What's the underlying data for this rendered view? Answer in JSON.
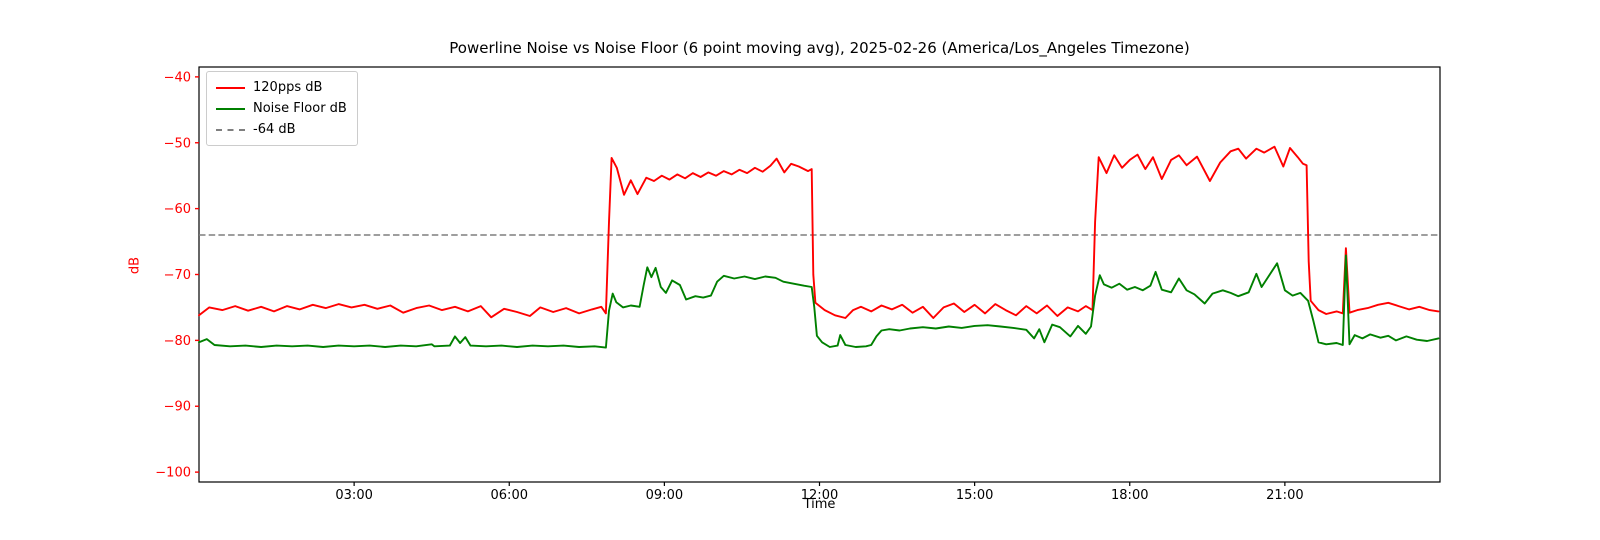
{
  "chart_data": {
    "type": "line",
    "title": "Powerline Noise vs Noise Floor (6 point moving avg), 2025-02-26 (America/Los_Angeles Timezone)",
    "xlabel": "Time",
    "ylabel": "dB",
    "xlim": [
      0,
      24
    ],
    "ylim": [
      -101.5,
      -38.5
    ],
    "grid": false,
    "legend_position": "upper-left",
    "axis_colors": {
      "y_tick_color": "#ff0000",
      "x_tick_color": "#000000",
      "frame_color": "#000000"
    },
    "x_ticks": [
      {
        "t": 3,
        "label": "03:00"
      },
      {
        "t": 6,
        "label": "06:00"
      },
      {
        "t": 9,
        "label": "09:00"
      },
      {
        "t": 12,
        "label": "12:00"
      },
      {
        "t": 15,
        "label": "15:00"
      },
      {
        "t": 18,
        "label": "18:00"
      },
      {
        "t": 21,
        "label": "21:00"
      }
    ],
    "y_ticks": [
      {
        "v": -40,
        "label": "−40"
      },
      {
        "v": -50,
        "label": "−50"
      },
      {
        "v": -60,
        "label": "−60"
      },
      {
        "v": -70,
        "label": "−70"
      },
      {
        "v": -80,
        "label": "−80"
      },
      {
        "v": -90,
        "label": "−90"
      },
      {
        "v": -100,
        "label": "−100"
      }
    ],
    "threshold": {
      "value": -64,
      "label": "-64 dB",
      "color": "#7f7f7f",
      "style": "dashed"
    },
    "legend": [
      {
        "label": "120pps dB",
        "color": "#ff0000",
        "dash": false
      },
      {
        "label": "Noise Floor dB",
        "color": "#008000",
        "dash": false
      },
      {
        "label": "-64 dB",
        "color": "#7f7f7f",
        "dash": true
      }
    ],
    "series": [
      {
        "name": "120pps dB",
        "color": "#ff0000",
        "points": [
          [
            0.0,
            -76.2
          ],
          [
            0.2,
            -75.0
          ],
          [
            0.45,
            -75.4
          ],
          [
            0.7,
            -74.8
          ],
          [
            0.95,
            -75.5
          ],
          [
            1.2,
            -74.9
          ],
          [
            1.45,
            -75.6
          ],
          [
            1.7,
            -74.8
          ],
          [
            1.95,
            -75.3
          ],
          [
            2.2,
            -74.6
          ],
          [
            2.45,
            -75.1
          ],
          [
            2.7,
            -74.5
          ],
          [
            2.95,
            -75.0
          ],
          [
            3.2,
            -74.6
          ],
          [
            3.45,
            -75.2
          ],
          [
            3.7,
            -74.7
          ],
          [
            3.95,
            -75.8
          ],
          [
            4.2,
            -75.1
          ],
          [
            4.45,
            -74.7
          ],
          [
            4.7,
            -75.4
          ],
          [
            4.95,
            -74.9
          ],
          [
            5.2,
            -75.6
          ],
          [
            5.45,
            -74.8
          ],
          [
            5.65,
            -76.5
          ],
          [
            5.9,
            -75.2
          ],
          [
            6.15,
            -75.7
          ],
          [
            6.4,
            -76.3
          ],
          [
            6.6,
            -75.0
          ],
          [
            6.85,
            -75.7
          ],
          [
            7.1,
            -75.1
          ],
          [
            7.35,
            -75.9
          ],
          [
            7.6,
            -75.3
          ],
          [
            7.78,
            -74.9
          ],
          [
            7.87,
            -75.9
          ],
          [
            7.93,
            -62.0
          ],
          [
            7.98,
            -52.3
          ],
          [
            8.08,
            -53.8
          ],
          [
            8.22,
            -57.9
          ],
          [
            8.35,
            -55.7
          ],
          [
            8.48,
            -57.8
          ],
          [
            8.65,
            -55.3
          ],
          [
            8.8,
            -55.8
          ],
          [
            8.95,
            -55.0
          ],
          [
            9.1,
            -55.6
          ],
          [
            9.25,
            -54.8
          ],
          [
            9.4,
            -55.4
          ],
          [
            9.55,
            -54.6
          ],
          [
            9.7,
            -55.2
          ],
          [
            9.85,
            -54.5
          ],
          [
            10.0,
            -55.0
          ],
          [
            10.15,
            -54.3
          ],
          [
            10.3,
            -54.8
          ],
          [
            10.45,
            -54.1
          ],
          [
            10.6,
            -54.6
          ],
          [
            10.75,
            -53.8
          ],
          [
            10.9,
            -54.4
          ],
          [
            11.05,
            -53.5
          ],
          [
            11.17,
            -52.4
          ],
          [
            11.32,
            -54.5
          ],
          [
            11.45,
            -53.2
          ],
          [
            11.6,
            -53.6
          ],
          [
            11.78,
            -54.3
          ],
          [
            11.85,
            -54.0
          ],
          [
            11.88,
            -70.0
          ],
          [
            11.92,
            -74.3
          ],
          [
            12.1,
            -75.4
          ],
          [
            12.3,
            -76.2
          ],
          [
            12.5,
            -76.6
          ],
          [
            12.65,
            -75.4
          ],
          [
            12.8,
            -74.9
          ],
          [
            13.0,
            -75.6
          ],
          [
            13.2,
            -74.7
          ],
          [
            13.4,
            -75.3
          ],
          [
            13.6,
            -74.6
          ],
          [
            13.8,
            -75.8
          ],
          [
            14.0,
            -74.9
          ],
          [
            14.2,
            -76.6
          ],
          [
            14.4,
            -75.0
          ],
          [
            14.6,
            -74.4
          ],
          [
            14.8,
            -75.7
          ],
          [
            15.0,
            -74.6
          ],
          [
            15.2,
            -75.9
          ],
          [
            15.4,
            -74.5
          ],
          [
            15.6,
            -75.4
          ],
          [
            15.8,
            -76.2
          ],
          [
            16.0,
            -74.8
          ],
          [
            16.2,
            -75.9
          ],
          [
            16.4,
            -74.7
          ],
          [
            16.6,
            -76.3
          ],
          [
            16.8,
            -75.0
          ],
          [
            17.0,
            -75.6
          ],
          [
            17.15,
            -74.8
          ],
          [
            17.28,
            -75.4
          ],
          [
            17.33,
            -62.0
          ],
          [
            17.4,
            -52.2
          ],
          [
            17.55,
            -54.6
          ],
          [
            17.7,
            -51.9
          ],
          [
            17.85,
            -53.8
          ],
          [
            18.0,
            -52.6
          ],
          [
            18.15,
            -51.8
          ],
          [
            18.3,
            -54.0
          ],
          [
            18.45,
            -52.2
          ],
          [
            18.62,
            -55.5
          ],
          [
            18.8,
            -52.6
          ],
          [
            18.95,
            -51.9
          ],
          [
            19.1,
            -53.4
          ],
          [
            19.3,
            -52.1
          ],
          [
            19.55,
            -55.8
          ],
          [
            19.75,
            -53.0
          ],
          [
            19.95,
            -51.3
          ],
          [
            20.1,
            -50.9
          ],
          [
            20.25,
            -52.4
          ],
          [
            20.45,
            -50.9
          ],
          [
            20.6,
            -51.5
          ],
          [
            20.8,
            -50.6
          ],
          [
            20.97,
            -53.6
          ],
          [
            21.1,
            -50.8
          ],
          [
            21.25,
            -52.2
          ],
          [
            21.35,
            -53.2
          ],
          [
            21.42,
            -53.4
          ],
          [
            21.46,
            -68.0
          ],
          [
            21.5,
            -74.0
          ],
          [
            21.65,
            -75.4
          ],
          [
            21.8,
            -76.0
          ],
          [
            22.0,
            -75.6
          ],
          [
            22.12,
            -75.9
          ],
          [
            22.18,
            -66.0
          ],
          [
            22.25,
            -75.8
          ],
          [
            22.4,
            -75.4
          ],
          [
            22.6,
            -75.1
          ],
          [
            22.8,
            -74.6
          ],
          [
            23.0,
            -74.3
          ],
          [
            23.2,
            -74.8
          ],
          [
            23.4,
            -75.3
          ],
          [
            23.6,
            -74.9
          ],
          [
            23.8,
            -75.4
          ],
          [
            23.97,
            -75.6
          ]
        ]
      },
      {
        "name": "Noise Floor dB",
        "color": "#008000",
        "points": [
          [
            0.0,
            -80.3
          ],
          [
            0.15,
            -79.8
          ],
          [
            0.3,
            -80.7
          ],
          [
            0.6,
            -80.9
          ],
          [
            0.9,
            -80.8
          ],
          [
            1.2,
            -81.0
          ],
          [
            1.5,
            -80.8
          ],
          [
            1.8,
            -80.9
          ],
          [
            2.1,
            -80.8
          ],
          [
            2.4,
            -81.0
          ],
          [
            2.7,
            -80.8
          ],
          [
            3.0,
            -80.9
          ],
          [
            3.3,
            -80.8
          ],
          [
            3.6,
            -81.0
          ],
          [
            3.9,
            -80.8
          ],
          [
            4.2,
            -80.9
          ],
          [
            4.5,
            -80.6
          ],
          [
            4.55,
            -80.9
          ],
          [
            4.85,
            -80.8
          ],
          [
            4.95,
            -79.4
          ],
          [
            5.05,
            -80.4
          ],
          [
            5.15,
            -79.5
          ],
          [
            5.25,
            -80.8
          ],
          [
            5.55,
            -80.9
          ],
          [
            5.85,
            -80.8
          ],
          [
            6.15,
            -81.0
          ],
          [
            6.45,
            -80.8
          ],
          [
            6.75,
            -80.9
          ],
          [
            7.05,
            -80.8
          ],
          [
            7.35,
            -81.0
          ],
          [
            7.65,
            -80.9
          ],
          [
            7.87,
            -81.1
          ],
          [
            7.93,
            -75.5
          ],
          [
            8.0,
            -72.9
          ],
          [
            8.07,
            -74.2
          ],
          [
            8.2,
            -75.0
          ],
          [
            8.35,
            -74.7
          ],
          [
            8.52,
            -74.9
          ],
          [
            8.6,
            -71.6
          ],
          [
            8.67,
            -68.9
          ],
          [
            8.75,
            -70.4
          ],
          [
            8.83,
            -69.0
          ],
          [
            8.93,
            -71.9
          ],
          [
            9.03,
            -72.8
          ],
          [
            9.15,
            -70.9
          ],
          [
            9.3,
            -71.6
          ],
          [
            9.42,
            -73.8
          ],
          [
            9.6,
            -73.3
          ],
          [
            9.75,
            -73.5
          ],
          [
            9.9,
            -73.2
          ],
          [
            10.02,
            -71.1
          ],
          [
            10.15,
            -70.2
          ],
          [
            10.35,
            -70.6
          ],
          [
            10.55,
            -70.3
          ],
          [
            10.75,
            -70.7
          ],
          [
            10.95,
            -70.3
          ],
          [
            11.15,
            -70.5
          ],
          [
            11.3,
            -71.1
          ],
          [
            11.5,
            -71.4
          ],
          [
            11.7,
            -71.7
          ],
          [
            11.85,
            -71.9
          ],
          [
            11.9,
            -75.0
          ],
          [
            11.95,
            -79.3
          ],
          [
            12.05,
            -80.3
          ],
          [
            12.2,
            -81.0
          ],
          [
            12.35,
            -80.8
          ],
          [
            12.4,
            -79.2
          ],
          [
            12.5,
            -80.7
          ],
          [
            12.7,
            -81.0
          ],
          [
            12.9,
            -80.9
          ],
          [
            13.0,
            -80.7
          ],
          [
            13.1,
            -79.4
          ],
          [
            13.2,
            -78.5
          ],
          [
            13.35,
            -78.3
          ],
          [
            13.55,
            -78.5
          ],
          [
            13.75,
            -78.2
          ],
          [
            14.0,
            -78.0
          ],
          [
            14.25,
            -78.2
          ],
          [
            14.5,
            -77.9
          ],
          [
            14.75,
            -78.1
          ],
          [
            15.0,
            -77.8
          ],
          [
            15.25,
            -77.7
          ],
          [
            15.5,
            -77.9
          ],
          [
            15.75,
            -78.1
          ],
          [
            16.0,
            -78.4
          ],
          [
            16.15,
            -79.7
          ],
          [
            16.25,
            -78.3
          ],
          [
            16.35,
            -80.3
          ],
          [
            16.5,
            -77.6
          ],
          [
            16.65,
            -78.0
          ],
          [
            16.85,
            -79.4
          ],
          [
            17.0,
            -77.8
          ],
          [
            17.15,
            -79.0
          ],
          [
            17.25,
            -77.9
          ],
          [
            17.33,
            -73.2
          ],
          [
            17.42,
            -70.1
          ],
          [
            17.5,
            -71.5
          ],
          [
            17.65,
            -72.0
          ],
          [
            17.8,
            -71.4
          ],
          [
            17.95,
            -72.3
          ],
          [
            18.1,
            -71.9
          ],
          [
            18.25,
            -72.4
          ],
          [
            18.4,
            -71.7
          ],
          [
            18.5,
            -69.6
          ],
          [
            18.62,
            -72.3
          ],
          [
            18.8,
            -72.7
          ],
          [
            18.95,
            -70.6
          ],
          [
            19.1,
            -72.4
          ],
          [
            19.25,
            -73.0
          ],
          [
            19.45,
            -74.4
          ],
          [
            19.6,
            -72.9
          ],
          [
            19.8,
            -72.4
          ],
          [
            19.95,
            -72.8
          ],
          [
            20.1,
            -73.3
          ],
          [
            20.3,
            -72.7
          ],
          [
            20.45,
            -69.9
          ],
          [
            20.55,
            -71.9
          ],
          [
            20.85,
            -68.3
          ],
          [
            21.0,
            -72.4
          ],
          [
            21.15,
            -73.2
          ],
          [
            21.3,
            -72.8
          ],
          [
            21.45,
            -74.0
          ],
          [
            21.55,
            -77.0
          ],
          [
            21.65,
            -80.3
          ],
          [
            21.8,
            -80.6
          ],
          [
            22.0,
            -80.4
          ],
          [
            22.12,
            -80.7
          ],
          [
            22.18,
            -67.1
          ],
          [
            22.25,
            -80.6
          ],
          [
            22.35,
            -79.2
          ],
          [
            22.5,
            -79.7
          ],
          [
            22.65,
            -79.1
          ],
          [
            22.85,
            -79.6
          ],
          [
            23.0,
            -79.3
          ],
          [
            23.15,
            -80.0
          ],
          [
            23.35,
            -79.4
          ],
          [
            23.55,
            -79.9
          ],
          [
            23.75,
            -80.1
          ],
          [
            23.97,
            -79.7
          ]
        ]
      }
    ]
  }
}
